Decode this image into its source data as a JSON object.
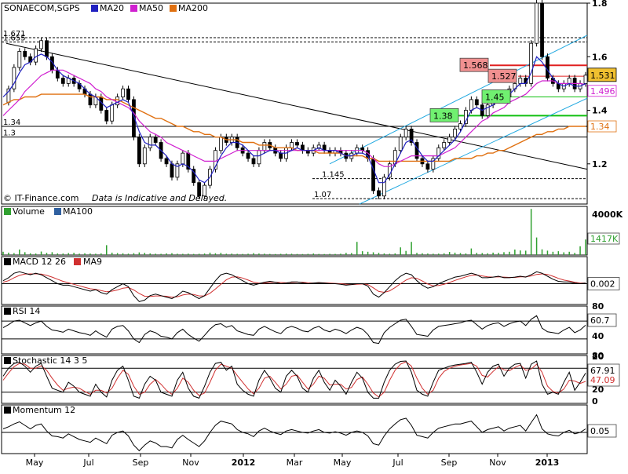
{
  "chart_data": [
    {
      "type": "line",
      "panel": "price",
      "title": "SONAECOM,SGPS",
      "legend": [
        {
          "name": "MA20",
          "color": "#2020c0"
        },
        {
          "name": "MA50",
          "color": "#d020d0"
        },
        {
          "name": "MA200",
          "color": "#e07010"
        }
      ],
      "ylim": [
        1.05,
        1.8
      ],
      "yticks": [
        "1.8",
        "1.6",
        "1.4",
        "1.2"
      ],
      "x_tick_labels": [
        "May",
        "Jul",
        "Sep",
        "Nov",
        "2012",
        "Mar",
        "May",
        "Jul",
        "Sep",
        "Nov",
        "2013"
      ],
      "horizontal_lines": [
        {
          "value": 1.671,
          "label": "1.671",
          "style": "dashed"
        },
        {
          "value": 1.655,
          "label": "1.655",
          "style": "dashed"
        },
        {
          "value": 1.34,
          "label": "1.34",
          "style": "solid"
        },
        {
          "value": 1.3,
          "label": "1.3",
          "style": "solid"
        },
        {
          "value": 1.145,
          "label": "1.145",
          "style": "dashed"
        },
        {
          "value": 1.07,
          "label": "1.07",
          "style": "dashed"
        }
      ],
      "price_labels": [
        {
          "value": 1.568,
          "text": "1.568"
        },
        {
          "value": 1.527,
          "text": "1.527"
        },
        {
          "value": 1.45,
          "text": "1.45"
        },
        {
          "value": 1.38,
          "text": "1.38"
        }
      ],
      "right_labels": [
        {
          "value": 1.531,
          "text": "1.531",
          "kind": "last"
        },
        {
          "value": 1.496,
          "text": "1.496",
          "kind": "ma50"
        },
        {
          "value": 1.34,
          "text": "1.34",
          "kind": "ma200"
        }
      ],
      "price": [
        1.43,
        1.48,
        1.56,
        1.62,
        1.6,
        1.58,
        1.63,
        1.66,
        1.6,
        1.55,
        1.52,
        1.5,
        1.52,
        1.5,
        1.48,
        1.46,
        1.42,
        1.45,
        1.4,
        1.36,
        1.42,
        1.45,
        1.48,
        1.44,
        1.3,
        1.2,
        1.26,
        1.3,
        1.28,
        1.22,
        1.2,
        1.15,
        1.2,
        1.24,
        1.18,
        1.13,
        1.08,
        1.12,
        1.18,
        1.25,
        1.3,
        1.28,
        1.3,
        1.26,
        1.24,
        1.22,
        1.2,
        1.25,
        1.28,
        1.26,
        1.24,
        1.22,
        1.26,
        1.28,
        1.27,
        1.25,
        1.24,
        1.26,
        1.27,
        1.25,
        1.24,
        1.25,
        1.24,
        1.22,
        1.24,
        1.26,
        1.25,
        1.22,
        1.1,
        1.08,
        1.15,
        1.2,
        1.25,
        1.3,
        1.33,
        1.28,
        1.22,
        1.2,
        1.18,
        1.22,
        1.26,
        1.28,
        1.3,
        1.33,
        1.35,
        1.4,
        1.44,
        1.42,
        1.38,
        1.42,
        1.44,
        1.46,
        1.45,
        1.48,
        1.5,
        1.52,
        1.5,
        1.65,
        1.8,
        1.6,
        1.52,
        1.5,
        1.48,
        1.5,
        1.52,
        1.48,
        1.5,
        1.531
      ],
      "ma20": [
        1.45,
        1.47,
        1.5,
        1.54,
        1.57,
        1.58,
        1.6,
        1.61,
        1.6,
        1.58,
        1.55,
        1.53,
        1.52,
        1.51,
        1.5,
        1.48,
        1.46,
        1.45,
        1.43,
        1.41,
        1.42,
        1.43,
        1.44,
        1.43,
        1.38,
        1.32,
        1.28,
        1.27,
        1.27,
        1.25,
        1.23,
        1.2,
        1.19,
        1.2,
        1.19,
        1.17,
        1.14,
        1.13,
        1.15,
        1.19,
        1.23,
        1.26,
        1.28,
        1.28,
        1.27,
        1.25,
        1.23,
        1.23,
        1.24,
        1.25,
        1.25,
        1.24,
        1.24,
        1.25,
        1.26,
        1.25,
        1.25,
        1.25,
        1.26,
        1.25,
        1.25,
        1.25,
        1.24,
        1.23,
        1.23,
        1.24,
        1.24,
        1.23,
        1.18,
        1.13,
        1.13,
        1.16,
        1.2,
        1.24,
        1.28,
        1.29,
        1.26,
        1.23,
        1.21,
        1.21,
        1.23,
        1.25,
        1.27,
        1.29,
        1.32,
        1.36,
        1.4,
        1.41,
        1.4,
        1.41,
        1.42,
        1.44,
        1.45,
        1.46,
        1.48,
        1.5,
        1.5,
        1.54,
        1.6,
        1.58,
        1.55,
        1.52,
        1.5,
        1.49,
        1.5,
        1.49,
        1.49,
        1.5
      ],
      "ma50": [
        1.38,
        1.4,
        1.42,
        1.44,
        1.47,
        1.49,
        1.51,
        1.53,
        1.54,
        1.55,
        1.55,
        1.55,
        1.54,
        1.53,
        1.52,
        1.51,
        1.5,
        1.48,
        1.47,
        1.45,
        1.44,
        1.43,
        1.42,
        1.41,
        1.39,
        1.36,
        1.34,
        1.32,
        1.31,
        1.3,
        1.28,
        1.27,
        1.26,
        1.25,
        1.24,
        1.23,
        1.22,
        1.21,
        1.21,
        1.21,
        1.22,
        1.23,
        1.24,
        1.25,
        1.25,
        1.25,
        1.25,
        1.25,
        1.25,
        1.25,
        1.25,
        1.25,
        1.25,
        1.25,
        1.25,
        1.25,
        1.25,
        1.25,
        1.25,
        1.25,
        1.25,
        1.25,
        1.25,
        1.25,
        1.25,
        1.25,
        1.25,
        1.24,
        1.22,
        1.2,
        1.19,
        1.19,
        1.2,
        1.21,
        1.22,
        1.23,
        1.23,
        1.23,
        1.23,
        1.23,
        1.23,
        1.24,
        1.25,
        1.26,
        1.28,
        1.3,
        1.32,
        1.34,
        1.36,
        1.37,
        1.39,
        1.4,
        1.41,
        1.43,
        1.44,
        1.45,
        1.46,
        1.48,
        1.5,
        1.51,
        1.51,
        1.51,
        1.5,
        1.5,
        1.5,
        1.5,
        1.5,
        1.496
      ],
      "ma200": [
        1.42,
        1.43,
        1.44,
        1.44,
        1.45,
        1.45,
        1.45,
        1.46,
        1.46,
        1.46,
        1.46,
        1.46,
        1.46,
        1.46,
        1.46,
        1.46,
        1.45,
        1.45,
        1.45,
        1.44,
        1.44,
        1.44,
        1.43,
        1.42,
        1.41,
        1.4,
        1.39,
        1.38,
        1.37,
        1.37,
        1.36,
        1.35,
        1.34,
        1.34,
        1.33,
        1.32,
        1.32,
        1.31,
        1.31,
        1.3,
        1.3,
        1.29,
        1.29,
        1.29,
        1.28,
        1.28,
        1.28,
        1.27,
        1.27,
        1.27,
        1.26,
        1.26,
        1.26,
        1.26,
        1.25,
        1.25,
        1.25,
        1.25,
        1.24,
        1.24,
        1.24,
        1.24,
        1.24,
        1.23,
        1.23,
        1.23,
        1.23,
        1.22,
        1.22,
        1.21,
        1.21,
        1.21,
        1.21,
        1.21,
        1.21,
        1.21,
        1.21,
        1.21,
        1.21,
        1.21,
        1.21,
        1.21,
        1.21,
        1.22,
        1.22,
        1.22,
        1.22,
        1.23,
        1.23,
        1.24,
        1.24,
        1.25,
        1.25,
        1.26,
        1.27,
        1.28,
        1.29,
        1.3,
        1.31,
        1.31,
        1.32,
        1.32,
        1.33,
        1.33,
        1.34,
        1.34,
        1.34,
        1.34
      ],
      "watermark": "© IT-Finance.com",
      "disclaimer": "Data is Indicative and Delayed."
    },
    {
      "type": "bar",
      "panel": "volume",
      "legend": [
        {
          "name": "Volume",
          "color": "#30a030"
        },
        {
          "name": "MA100",
          "color": "#3060a0"
        }
      ],
      "ylim": [
        0,
        4000
      ],
      "yticks": [
        "4000K"
      ],
      "last_label": "1417K",
      "values": [
        300,
        220,
        180,
        500,
        260,
        160,
        140,
        320,
        200,
        260,
        150,
        140,
        180,
        210,
        130,
        160,
        140,
        120,
        150,
        900,
        220,
        180,
        160,
        130,
        170,
        240,
        200,
        150,
        120,
        110,
        150,
        170,
        120,
        110,
        130,
        100,
        120,
        140,
        220,
        160,
        200,
        120,
        130,
        110,
        100,
        120,
        170,
        140,
        120,
        100,
        90,
        110,
        130,
        120,
        100,
        90,
        110,
        140,
        100,
        90,
        110,
        100,
        120,
        200,
        180,
        1200,
        350,
        300,
        250,
        200,
        150,
        120,
        150,
        700,
        380,
        1200,
        200,
        160,
        140,
        120,
        130,
        160,
        280,
        220,
        180,
        150,
        600,
        200,
        180,
        160,
        220,
        200,
        260,
        300,
        500,
        420,
        400,
        4200,
        1600,
        520,
        400,
        300,
        350,
        250,
        300,
        200,
        800,
        1417
      ]
    },
    {
      "type": "line",
      "panel": "macd",
      "title": "MACD 12 26",
      "legend": [
        {
          "name": "MACD 12 26",
          "color": "#000000"
        },
        {
          "name": "MA9",
          "color": "#d03030"
        }
      ],
      "last_label": "0.002",
      "macd": [
        0.01,
        0.02,
        0.035,
        0.04,
        0.035,
        0.03,
        0.035,
        0.03,
        0.02,
        0.01,
        0.0,
        -0.005,
        -0.005,
        -0.01,
        -0.015,
        -0.02,
        -0.025,
        -0.02,
        -0.03,
        -0.035,
        -0.02,
        -0.01,
        0.0,
        -0.01,
        -0.04,
        -0.06,
        -0.055,
        -0.04,
        -0.035,
        -0.04,
        -0.045,
        -0.05,
        -0.04,
        -0.025,
        -0.03,
        -0.04,
        -0.05,
        -0.04,
        -0.015,
        0.01,
        0.03,
        0.035,
        0.03,
        0.02,
        0.01,
        0.0,
        -0.005,
        0.0,
        0.005,
        0.008,
        0.005,
        0.0,
        0.002,
        0.006,
        0.006,
        0.003,
        0.0,
        0.002,
        0.004,
        0.002,
        0.0,
        0.0,
        -0.002,
        -0.005,
        -0.003,
        0.0,
        0.0,
        -0.008,
        -0.035,
        -0.045,
        -0.03,
        -0.01,
        0.01,
        0.025,
        0.035,
        0.03,
        0.01,
        -0.005,
        -0.015,
        -0.01,
        0.0,
        0.008,
        0.015,
        0.022,
        0.025,
        0.03,
        0.035,
        0.03,
        0.02,
        0.02,
        0.022,
        0.025,
        0.02,
        0.02,
        0.022,
        0.025,
        0.022,
        0.03,
        0.04,
        0.035,
        0.025,
        0.015,
        0.008,
        0.006,
        0.006,
        0.002,
        0.0,
        0.002
      ],
      "ma9": [
        0.005,
        0.01,
        0.02,
        0.028,
        0.032,
        0.033,
        0.033,
        0.032,
        0.028,
        0.022,
        0.015,
        0.008,
        0.003,
        -0.002,
        -0.007,
        -0.012,
        -0.017,
        -0.019,
        -0.023,
        -0.027,
        -0.025,
        -0.021,
        -0.015,
        -0.013,
        -0.021,
        -0.033,
        -0.042,
        -0.043,
        -0.041,
        -0.041,
        -0.042,
        -0.045,
        -0.044,
        -0.038,
        -0.035,
        -0.036,
        -0.041,
        -0.041,
        -0.032,
        -0.018,
        -0.002,
        0.013,
        0.022,
        0.023,
        0.019,
        0.012,
        0.005,
        0.002,
        0.002,
        0.004,
        0.005,
        0.004,
        0.003,
        0.004,
        0.005,
        0.005,
        0.003,
        0.002,
        0.003,
        0.003,
        0.002,
        0.001,
        0.0,
        -0.002,
        -0.003,
        -0.002,
        -0.001,
        -0.003,
        -0.014,
        -0.026,
        -0.029,
        -0.024,
        -0.013,
        0.0,
        0.012,
        0.02,
        0.018,
        0.009,
        -0.001,
        -0.007,
        -0.006,
        -0.002,
        0.004,
        0.011,
        0.017,
        0.023,
        0.028,
        0.029,
        0.026,
        0.023,
        0.022,
        0.023,
        0.022,
        0.021,
        0.021,
        0.023,
        0.023,
        0.026,
        0.031,
        0.033,
        0.031,
        0.025,
        0.018,
        0.012,
        0.009,
        0.005,
        0.002,
        0.002
      ]
    },
    {
      "type": "line",
      "panel": "rsi",
      "title": "RSI 14",
      "ylim": [
        0,
        100
      ],
      "yticks": [
        "80",
        "40",
        "20"
      ],
      "levels": [
        70,
        30
      ],
      "last_label": "60.7",
      "values": [
        55,
        62,
        70,
        72,
        66,
        60,
        66,
        70,
        58,
        50,
        48,
        45,
        52,
        48,
        44,
        42,
        38,
        48,
        40,
        34,
        52,
        58,
        60,
        48,
        30,
        22,
        40,
        48,
        44,
        36,
        34,
        30,
        44,
        52,
        40,
        32,
        25,
        38,
        52,
        62,
        64,
        56,
        60,
        48,
        44,
        40,
        38,
        52,
        58,
        52,
        46,
        42,
        54,
        58,
        54,
        48,
        46,
        54,
        58,
        50,
        46,
        52,
        48,
        42,
        50,
        56,
        52,
        40,
        22,
        20,
        44,
        56,
        64,
        72,
        74,
        58,
        40,
        38,
        36,
        50,
        58,
        60,
        62,
        64,
        66,
        70,
        72,
        62,
        52,
        60,
        64,
        66,
        58,
        64,
        68,
        70,
        60,
        74,
        82,
        54,
        46,
        44,
        42,
        50,
        56,
        44,
        50,
        60.7
      ]
    },
    {
      "type": "line",
      "panel": "stochastic",
      "title": "Stochastic 14 3 5",
      "ylim": [
        0,
        100
      ],
      "yticks": [
        "80",
        "20",
        "0"
      ],
      "levels": [
        80,
        20
      ],
      "last_labels": [
        "67.91",
        "47.09"
      ],
      "k": [
        60,
        80,
        92,
        95,
        85,
        70,
        85,
        92,
        60,
        30,
        25,
        20,
        45,
        35,
        20,
        15,
        10,
        40,
        20,
        8,
        50,
        75,
        85,
        50,
        10,
        5,
        40,
        60,
        50,
        20,
        15,
        10,
        50,
        70,
        30,
        10,
        5,
        35,
        70,
        92,
        95,
        75,
        85,
        40,
        25,
        15,
        10,
        50,
        75,
        55,
        30,
        20,
        60,
        75,
        60,
        30,
        20,
        55,
        75,
        45,
        25,
        50,
        35,
        15,
        45,
        70,
        55,
        20,
        5,
        5,
        45,
        75,
        90,
        97,
        98,
        70,
        25,
        15,
        10,
        45,
        75,
        80,
        85,
        88,
        90,
        92,
        95,
        70,
        40,
        70,
        85,
        90,
        60,
        80,
        90,
        92,
        55,
        90,
        98,
        40,
        15,
        20,
        15,
        45,
        70,
        25,
        45,
        67.91
      ],
      "d": [
        50,
        68,
        84,
        92,
        90,
        80,
        80,
        86,
        75,
        55,
        38,
        25,
        30,
        33,
        30,
        22,
        15,
        25,
        25,
        18,
        30,
        55,
        75,
        65,
        35,
        15,
        20,
        40,
        52,
        40,
        25,
        15,
        30,
        55,
        45,
        25,
        12,
        18,
        45,
        75,
        90,
        85,
        80,
        62,
        45,
        28,
        16,
        30,
        55,
        60,
        45,
        28,
        40,
        60,
        63,
        45,
        28,
        40,
        60,
        55,
        38,
        40,
        40,
        28,
        32,
        52,
        58,
        40,
        18,
        8,
        20,
        50,
        75,
        90,
        96,
        85,
        55,
        30,
        15,
        25,
        55,
        72,
        80,
        85,
        88,
        90,
        92,
        85,
        62,
        58,
        72,
        84,
        76,
        74,
        82,
        88,
        75,
        78,
        90,
        70,
        35,
        22,
        18,
        28,
        50,
        48,
        42,
        47.09
      ]
    },
    {
      "type": "line",
      "panel": "momentum",
      "title": "Momentum 12",
      "last_label": "0.05",
      "values": [
        0.05,
        0.08,
        0.12,
        0.15,
        0.1,
        0.05,
        0.1,
        0.12,
        0.02,
        -0.05,
        -0.06,
        -0.08,
        -0.02,
        -0.06,
        -0.1,
        -0.12,
        -0.14,
        -0.08,
        -0.12,
        -0.16,
        -0.04,
        0.0,
        0.02,
        -0.05,
        -0.18,
        -0.26,
        -0.18,
        -0.12,
        -0.15,
        -0.2,
        -0.2,
        -0.22,
        -0.1,
        -0.04,
        -0.1,
        -0.15,
        -0.2,
        -0.12,
        0.0,
        0.1,
        0.16,
        0.14,
        0.12,
        0.04,
        0.0,
        -0.02,
        -0.06,
        0.02,
        0.06,
        0.02,
        -0.01,
        -0.03,
        0.02,
        0.04,
        0.02,
        0.0,
        -0.01,
        0.02,
        0.04,
        0.0,
        -0.01,
        0.01,
        -0.01,
        -0.04,
        0.0,
        0.02,
        0.0,
        -0.05,
        -0.16,
        -0.18,
        -0.05,
        0.05,
        0.12,
        0.18,
        0.2,
        0.1,
        -0.04,
        -0.06,
        -0.08,
        0.0,
        0.06,
        0.08,
        0.1,
        0.12,
        0.12,
        0.14,
        0.16,
        0.08,
        0.0,
        0.04,
        0.06,
        0.08,
        0.02,
        0.06,
        0.08,
        0.1,
        0.02,
        0.14,
        0.25,
        0.05,
        -0.02,
        -0.04,
        -0.05,
        0.0,
        0.03,
        -0.02,
        0.0,
        0.05
      ]
    }
  ]
}
